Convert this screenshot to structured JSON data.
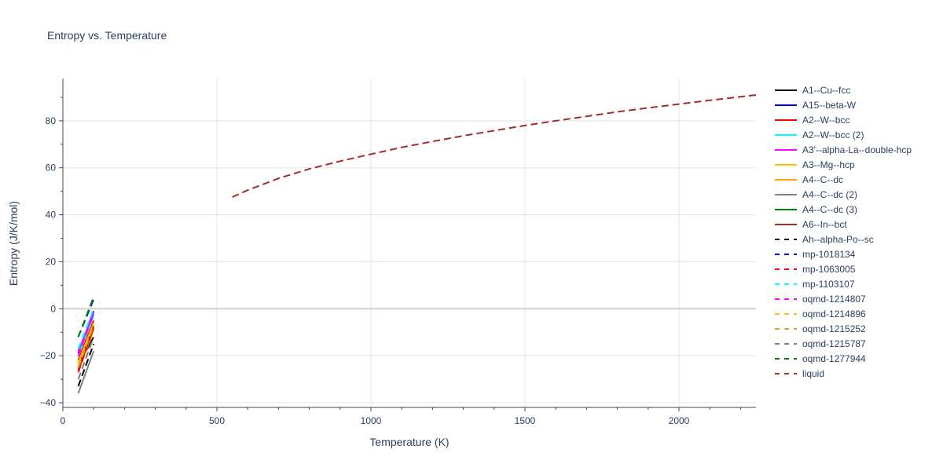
{
  "chart_data": {
    "type": "line",
    "title": "Entropy vs. Temperature",
    "xlabel": "Temperature (K)",
    "ylabel": "Entropy (J/K/mol)",
    "xlim": [
      0,
      2250
    ],
    "ylim": [
      -42,
      98
    ],
    "x_ticks": [
      0,
      500,
      1000,
      1500,
      2000
    ],
    "x_tick_labels": [
      "0",
      "500",
      "1000",
      "1500",
      "2000"
    ],
    "y_ticks": [
      -40,
      -20,
      0,
      20,
      40,
      60,
      80
    ],
    "y_tick_labels": [
      "−40",
      "−20",
      "0",
      "20",
      "40",
      "60",
      "80"
    ],
    "grid": true,
    "legend_position": "right",
    "series": [
      {
        "name": "A1--Cu--fcc",
        "color": "#000000",
        "dash": "solid",
        "x": [
          50,
          100
        ],
        "y": [
          -24,
          -12
        ]
      },
      {
        "name": "A15--beta-W",
        "color": "#0000ff",
        "dash": "solid",
        "x": [
          50,
          100
        ],
        "y": [
          -19,
          -1
        ]
      },
      {
        "name": "A2--W--bcc",
        "color": "#ff0000",
        "dash": "solid",
        "x": [
          50,
          100
        ],
        "y": [
          -22,
          -5
        ]
      },
      {
        "name": "A2--W--bcc (2)",
        "color": "#00ffff",
        "dash": "solid",
        "x": [
          50,
          100
        ],
        "y": [
          -20,
          -3
        ]
      },
      {
        "name": "A3'--alpha-La--double-hcp",
        "color": "#ff00ff",
        "dash": "solid",
        "x": [
          50,
          100
        ],
        "y": [
          -18,
          -2
        ]
      },
      {
        "name": "A3--Mg--hcp",
        "color": "#ffc000",
        "dash": "solid",
        "x": [
          50,
          100
        ],
        "y": [
          -23,
          -6
        ]
      },
      {
        "name": "A4--C--dc",
        "color": "#ffa500",
        "dash": "solid",
        "x": [
          50,
          100
        ],
        "y": [
          -27,
          -9
        ]
      },
      {
        "name": "A4--C--dc (2)",
        "color": "#808080",
        "dash": "solid",
        "x": [
          50,
          100
        ],
        "y": [
          -36,
          -18
        ]
      },
      {
        "name": "A4--C--dc (3)",
        "color": "#008000",
        "dash": "solid",
        "x": [
          50,
          100
        ],
        "y": [
          -25,
          -7
        ]
      },
      {
        "name": "A6--In--bct",
        "color": "#a52a2a",
        "dash": "solid",
        "x": [
          50,
          100
        ],
        "y": [
          -26,
          -8
        ]
      },
      {
        "name": "Ah--alpha-Po--sc",
        "color": "#000000",
        "dash": "dash",
        "x": [
          50,
          100
        ],
        "y": [
          -33,
          -15
        ]
      },
      {
        "name": "mp-1018134",
        "color": "#0000ff",
        "dash": "dash",
        "x": [
          50,
          100
        ],
        "y": [
          -12,
          4
        ]
      },
      {
        "name": "mp-1063005",
        "color": "#ff0000",
        "dash": "dash",
        "x": [
          50,
          100
        ],
        "y": [
          -27,
          -8
        ]
      },
      {
        "name": "mp-1103107",
        "color": "#00ffff",
        "dash": "dash",
        "x": [
          50,
          100
        ],
        "y": [
          -17,
          0
        ]
      },
      {
        "name": "oqmd-1214807",
        "color": "#ff00ff",
        "dash": "dash",
        "x": [
          50,
          100
        ],
        "y": [
          -20,
          -2
        ]
      },
      {
        "name": "oqmd-1214896",
        "color": "#ffc000",
        "dash": "dash",
        "x": [
          50,
          100
        ],
        "y": [
          -24,
          -6
        ]
      },
      {
        "name": "oqmd-1215252",
        "color": "#daa520",
        "dash": "dash",
        "x": [
          50,
          100
        ],
        "y": [
          -25,
          -7
        ]
      },
      {
        "name": "oqmd-1215787",
        "color": "#808080",
        "dash": "dash",
        "x": [
          50,
          100
        ],
        "y": [
          -30,
          -12
        ]
      },
      {
        "name": "oqmd-1277944",
        "color": "#008000",
        "dash": "dash",
        "x": [
          50,
          100
        ],
        "y": [
          -12,
          5
        ]
      },
      {
        "name": "liquid",
        "color": "#a52a2a",
        "dash": "dash",
        "x": [
          550,
          600,
          700,
          800,
          900,
          1000,
          1100,
          1200,
          1300,
          1400,
          1500,
          1600,
          1700,
          1800,
          1900,
          2000,
          2100,
          2250
        ],
        "y": [
          47.5,
          50.5,
          55.5,
          59.5,
          62.8,
          65.8,
          68.7,
          71.2,
          73.6,
          75.8,
          78.0,
          80.0,
          81.9,
          83.8,
          85.5,
          87.1,
          88.7,
          91.0
        ]
      }
    ]
  }
}
